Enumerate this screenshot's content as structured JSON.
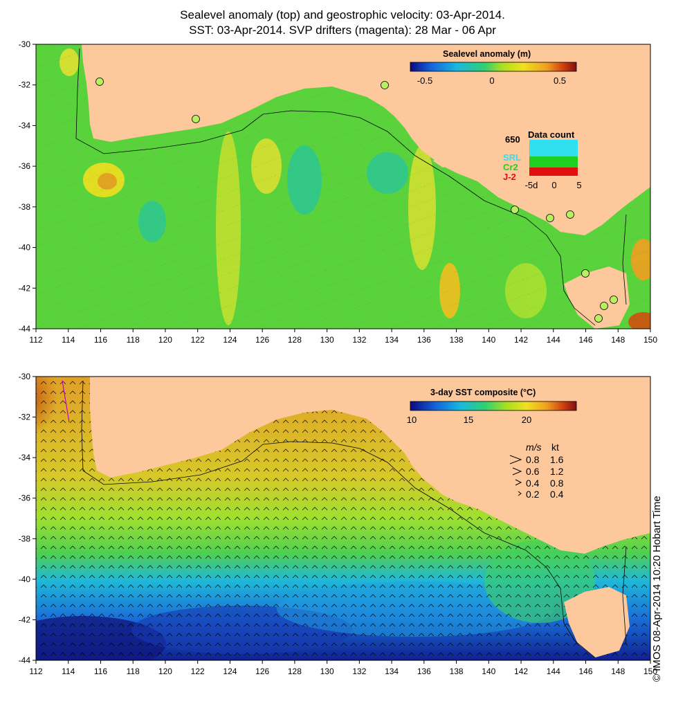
{
  "titles": {
    "line1": "Sealevel anomaly (top) and geostrophic velocity: 03-Apr-2014.",
    "line2": "SST: 03-Apr-2014. SVP drifters (magenta): 28 Mar - 06 Apr"
  },
  "axes": {
    "lon_ticks": [
      "112",
      "114",
      "116",
      "118",
      "120",
      "122",
      "124",
      "126",
      "128",
      "130",
      "132",
      "134",
      "136",
      "138",
      "140",
      "142",
      "144",
      "146",
      "148",
      "150"
    ],
    "lat_ticks": [
      "-30",
      "-32",
      "-34",
      "-36",
      "-38",
      "-40",
      "-42",
      "-44"
    ]
  },
  "top_map": {
    "colorbar_title": "Sealevel anomaly (m)",
    "colorbar_ticks": [
      "-0.5",
      "0",
      "0.5"
    ],
    "colorbar_colors": [
      "#0a0a80",
      "#1560d8",
      "#18b8e0",
      "#30d070",
      "#a8e020",
      "#f0e020",
      "#f0a020",
      "#d04010",
      "#801010"
    ],
    "data_count": {
      "title": "Data count",
      "max_label": "650",
      "missions": [
        {
          "label": "SRL",
          "color": "#30e0f0"
        },
        {
          "label": "Cr2",
          "color": "#20d020"
        },
        {
          "label": "J-2",
          "color": "#e01010"
        }
      ],
      "x_ticks": [
        "-5d",
        "0",
        "5"
      ]
    }
  },
  "bottom_map": {
    "colorbar_title": "3-day SST composite (°C)",
    "colorbar_ticks": [
      "10",
      "15",
      "20"
    ],
    "colorbar_colors": [
      "#0a0a80",
      "#1560d8",
      "#18b8e0",
      "#30d070",
      "#a8e020",
      "#f0e020",
      "#f0a020",
      "#d04010",
      "#801010"
    ],
    "velocity_legend": {
      "header_ms": "m/s",
      "header_kt": "kt",
      "rows": [
        {
          "ms": "0.8",
          "kt": "1.6"
        },
        {
          "ms": "0.6",
          "kt": "1.2"
        },
        {
          "ms": "0.4",
          "kt": "0.8"
        },
        {
          "ms": "0.2",
          "kt": "0.4"
        }
      ]
    }
  },
  "colors": {
    "land": "#fcc89c",
    "ocean_mid": "#5ad23c",
    "sst_warm": "#e6961e",
    "sst_cold": "#1432b4"
  },
  "copyright": "© IMOS 08-Apr-2014 10:20 Hobart Time"
}
